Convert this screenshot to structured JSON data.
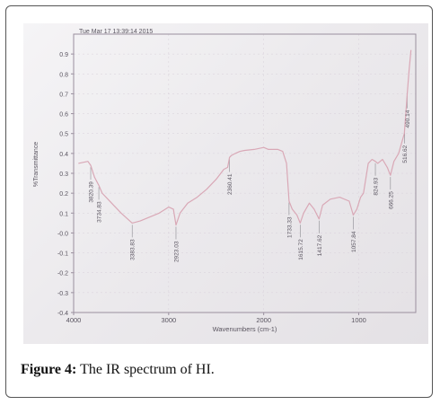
{
  "caption": {
    "label": "Figure 4:",
    "text": " The IR spectrum of HI."
  },
  "colors": {
    "spectrum": "#d9a8b6",
    "axis": "#9a8f9e",
    "grid": "#d8d0da",
    "text": "#5a5560",
    "peak_line": "#8a8a90"
  },
  "chart_data": {
    "type": "line",
    "title": "Tue Mar 17 13:39:14 2015",
    "xlabel": "Wavenumbers (cm-1)",
    "ylabel": "%Transmittance",
    "xlim": [
      4000,
      400
    ],
    "ylim": [
      -0.4,
      1.0
    ],
    "x_ticks": [
      4000,
      3000,
      2000,
      1000
    ],
    "y_ticks": [
      0.9,
      0.8,
      0.7,
      0.6,
      0.5,
      0.4,
      0.3,
      0.2,
      0.1,
      0.0,
      -0.1,
      -0.2,
      -0.3,
      -0.4
    ],
    "y_tick_labels": [
      "0.9",
      "0.8",
      "0.7",
      "0.6",
      "0.5",
      "0.4",
      "0.3",
      "0.2",
      "0.1",
      "-0.0",
      "-0.1",
      "-0.2",
      "-0.3",
      "-0.4"
    ],
    "grid": true,
    "series": [
      {
        "x": [
          3950,
          3850,
          3820,
          3780,
          3735,
          3700,
          3600,
          3500,
          3384,
          3300,
          3200,
          3100,
          3000,
          2950,
          2923,
          2880,
          2800,
          2700,
          2600,
          2500,
          2420,
          2380,
          2360,
          2340,
          2300,
          2250,
          2200,
          2100,
          2000,
          1950,
          1900,
          1850,
          1800,
          1760,
          1733,
          1700,
          1650,
          1616,
          1580,
          1520,
          1470,
          1418,
          1380,
          1300,
          1200,
          1100,
          1058,
          1020,
          980,
          950,
          900,
          860,
          825,
          800,
          750,
          700,
          666,
          630,
          580,
          550,
          520,
          517,
          505,
          490,
          470,
          450
        ],
        "y": [
          0.35,
          0.36,
          0.34,
          0.28,
          0.24,
          0.2,
          0.15,
          0.1,
          0.05,
          0.06,
          0.08,
          0.1,
          0.13,
          0.12,
          0.04,
          0.1,
          0.15,
          0.18,
          0.22,
          0.27,
          0.32,
          0.33,
          0.38,
          0.39,
          0.4,
          0.41,
          0.415,
          0.42,
          0.43,
          0.42,
          0.42,
          0.42,
          0.41,
          0.35,
          0.16,
          0.12,
          0.09,
          0.05,
          0.1,
          0.15,
          0.12,
          0.07,
          0.14,
          0.17,
          0.18,
          0.16,
          0.09,
          0.12,
          0.18,
          0.2,
          0.35,
          0.37,
          0.36,
          0.35,
          0.37,
          0.33,
          0.29,
          0.36,
          0.4,
          0.45,
          0.5,
          0.52,
          0.6,
          0.7,
          0.82,
          0.92
        ]
      }
    ],
    "peaks": [
      {
        "x": 3820.39,
        "label": "3820.39"
      },
      {
        "x": 3734.83,
        "label": "3734.83"
      },
      {
        "x": 3383.83,
        "label": "3383.83"
      },
      {
        "x": 2923.03,
        "label": "2923.03"
      },
      {
        "x": 2360.41,
        "label": "2360.41"
      },
      {
        "x": 1733.33,
        "label": "1733.33"
      },
      {
        "x": 1615.72,
        "label": "1615.72"
      },
      {
        "x": 1417.62,
        "label": "1417.62"
      },
      {
        "x": 1057.84,
        "label": "1057.84"
      },
      {
        "x": 824.93,
        "label": "824.93"
      },
      {
        "x": 666.25,
        "label": "666.25"
      },
      {
        "x": 516.62,
        "label": "516.62"
      },
      {
        "x": 490.14,
        "label": "490.14"
      }
    ]
  }
}
